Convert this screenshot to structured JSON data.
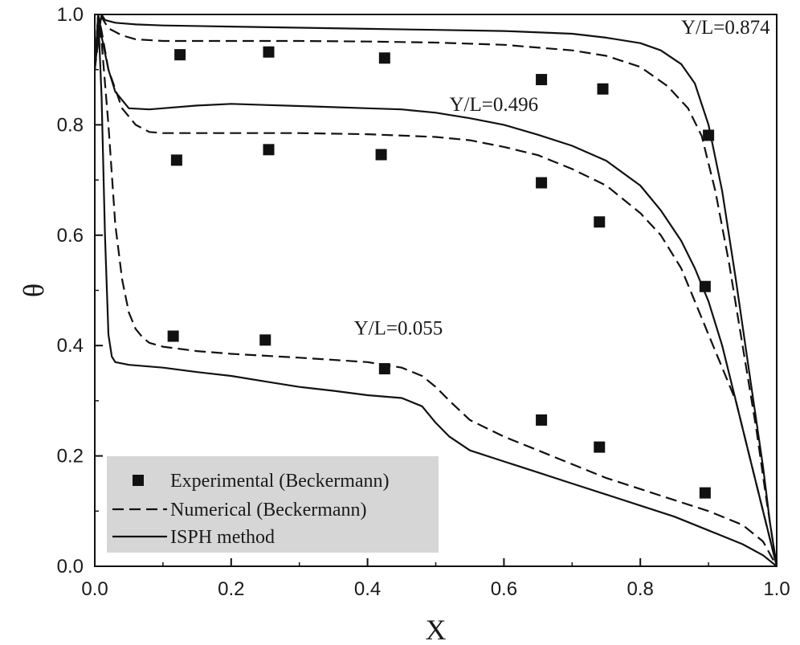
{
  "chart_data": {
    "type": "line",
    "title": "",
    "xlabel": "X",
    "ylabel": "θ",
    "xlim": [
      0.0,
      1.0
    ],
    "ylim": [
      0.0,
      1.0
    ],
    "xticks": [
      "0.0",
      "0.2",
      "0.4",
      "0.6",
      "0.8",
      "1.0"
    ],
    "yticks": [
      "0.0",
      "0.2",
      "0.4",
      "0.6",
      "0.8",
      "1.0"
    ],
    "grid": false,
    "legend": {
      "position": "bottom-left",
      "entries": [
        "Experimental (Beckermann)",
        "Numerical (Beckermann)",
        "ISPH method"
      ]
    },
    "annotations": [
      "Y/L=0.874",
      "Y/L=0.496",
      "Y/L=0.055"
    ],
    "series": [
      {
        "name": "Experimental (Beckermann)",
        "group": "Y/L=0.874",
        "style": "square",
        "x": [
          0.125,
          0.255,
          0.425,
          0.655,
          0.745,
          0.9
        ],
        "y": [
          0.927,
          0.932,
          0.921,
          0.882,
          0.865,
          0.781
        ]
      },
      {
        "name": "Experimental (Beckermann)",
        "group": "Y/L=0.496",
        "style": "square",
        "x": [
          0.12,
          0.255,
          0.42,
          0.655,
          0.74,
          0.895
        ],
        "y": [
          0.736,
          0.755,
          0.746,
          0.695,
          0.624,
          0.507
        ]
      },
      {
        "name": "Experimental (Beckermann)",
        "group": "Y/L=0.055",
        "style": "square",
        "x": [
          0.115,
          0.25,
          0.425,
          0.655,
          0.74,
          0.895
        ],
        "y": [
          0.417,
          0.41,
          0.358,
          0.265,
          0.216,
          0.133
        ]
      },
      {
        "name": "Numerical (Beckermann)",
        "group": "Y/L=0.874",
        "style": "dashed",
        "x": [
          0.0,
          0.005,
          0.01,
          0.02,
          0.04,
          0.06,
          0.1,
          0.2,
          0.3,
          0.4,
          0.5,
          0.6,
          0.7,
          0.75,
          0.8,
          0.84,
          0.87,
          0.89,
          0.91,
          0.93,
          0.95,
          0.97,
          0.985,
          1.0
        ],
        "y": [
          0.9,
          0.95,
          0.995,
          0.975,
          0.962,
          0.955,
          0.952,
          0.952,
          0.952,
          0.951,
          0.949,
          0.945,
          0.935,
          0.925,
          0.905,
          0.87,
          0.83,
          0.78,
          0.68,
          0.55,
          0.4,
          0.25,
          0.12,
          0.0
        ]
      },
      {
        "name": "Numerical (Beckermann)",
        "group": "Y/L=0.496",
        "style": "dashed",
        "x": [
          0.0,
          0.005,
          0.01,
          0.02,
          0.04,
          0.06,
          0.08,
          0.1,
          0.2,
          0.3,
          0.4,
          0.5,
          0.55,
          0.6,
          0.65,
          0.7,
          0.75,
          0.8,
          0.83,
          0.86,
          0.88,
          0.9,
          0.92,
          0.94,
          0.96,
          0.98,
          0.99,
          1.0
        ],
        "y": [
          0.9,
          1.0,
          0.97,
          0.9,
          0.83,
          0.8,
          0.787,
          0.785,
          0.785,
          0.785,
          0.783,
          0.778,
          0.772,
          0.76,
          0.745,
          0.72,
          0.69,
          0.64,
          0.6,
          0.54,
          0.48,
          0.42,
          0.36,
          0.3,
          0.2,
          0.1,
          0.05,
          0.0
        ]
      },
      {
        "name": "Numerical (Beckermann)",
        "group": "Y/L=0.055",
        "style": "dashed",
        "x": [
          0.0,
          0.005,
          0.01,
          0.02,
          0.03,
          0.04,
          0.05,
          0.06,
          0.07,
          0.08,
          0.1,
          0.15,
          0.2,
          0.3,
          0.4,
          0.45,
          0.48,
          0.5,
          0.52,
          0.55,
          0.6,
          0.65,
          0.7,
          0.75,
          0.8,
          0.85,
          0.9,
          0.95,
          0.98,
          1.0
        ],
        "y": [
          0.9,
          1.0,
          0.95,
          0.8,
          0.62,
          0.52,
          0.46,
          0.43,
          0.415,
          0.405,
          0.398,
          0.39,
          0.385,
          0.378,
          0.37,
          0.36,
          0.345,
          0.325,
          0.3,
          0.265,
          0.235,
          0.21,
          0.185,
          0.16,
          0.14,
          0.12,
          0.1,
          0.075,
          0.045,
          0.0
        ]
      },
      {
        "name": "ISPH method",
        "group": "Y/L=0.874",
        "style": "solid",
        "x": [
          0.0,
          0.005,
          0.01,
          0.015,
          0.03,
          0.06,
          0.1,
          0.2,
          0.3,
          0.4,
          0.5,
          0.6,
          0.7,
          0.75,
          0.8,
          0.83,
          0.86,
          0.88,
          0.9,
          0.92,
          0.94,
          0.96,
          0.98,
          0.99,
          1.0
        ],
        "y": [
          0.9,
          0.96,
          1.0,
          0.99,
          0.985,
          0.982,
          0.98,
          0.978,
          0.976,
          0.974,
          0.972,
          0.97,
          0.965,
          0.958,
          0.948,
          0.935,
          0.91,
          0.875,
          0.8,
          0.68,
          0.52,
          0.35,
          0.18,
          0.08,
          0.0
        ]
      },
      {
        "name": "ISPH method",
        "group": "Y/L=0.496",
        "style": "solid",
        "x": [
          0.0,
          0.005,
          0.01,
          0.02,
          0.03,
          0.05,
          0.08,
          0.1,
          0.15,
          0.2,
          0.25,
          0.3,
          0.35,
          0.4,
          0.45,
          0.5,
          0.55,
          0.6,
          0.65,
          0.7,
          0.75,
          0.8,
          0.83,
          0.86,
          0.88,
          0.9,
          0.92,
          0.94,
          0.96,
          0.98,
          0.99,
          1.0
        ],
        "y": [
          0.9,
          1.0,
          0.96,
          0.9,
          0.86,
          0.83,
          0.828,
          0.83,
          0.835,
          0.838,
          0.836,
          0.834,
          0.832,
          0.83,
          0.828,
          0.822,
          0.812,
          0.8,
          0.782,
          0.762,
          0.735,
          0.69,
          0.645,
          0.59,
          0.54,
          0.48,
          0.4,
          0.3,
          0.2,
          0.1,
          0.05,
          0.0
        ]
      },
      {
        "name": "ISPH method",
        "group": "Y/L=0.055",
        "style": "solid",
        "x": [
          0.0,
          0.005,
          0.01,
          0.015,
          0.02,
          0.025,
          0.03,
          0.05,
          0.1,
          0.15,
          0.2,
          0.25,
          0.3,
          0.35,
          0.4,
          0.45,
          0.48,
          0.5,
          0.52,
          0.55,
          0.6,
          0.65,
          0.7,
          0.75,
          0.8,
          0.85,
          0.9,
          0.95,
          0.98,
          1.0
        ],
        "y": [
          0.9,
          1.0,
          0.85,
          0.6,
          0.42,
          0.38,
          0.37,
          0.365,
          0.36,
          0.352,
          0.345,
          0.335,
          0.325,
          0.318,
          0.31,
          0.305,
          0.29,
          0.26,
          0.235,
          0.21,
          0.19,
          0.17,
          0.15,
          0.13,
          0.11,
          0.09,
          0.065,
          0.04,
          0.02,
          0.0
        ]
      }
    ]
  }
}
